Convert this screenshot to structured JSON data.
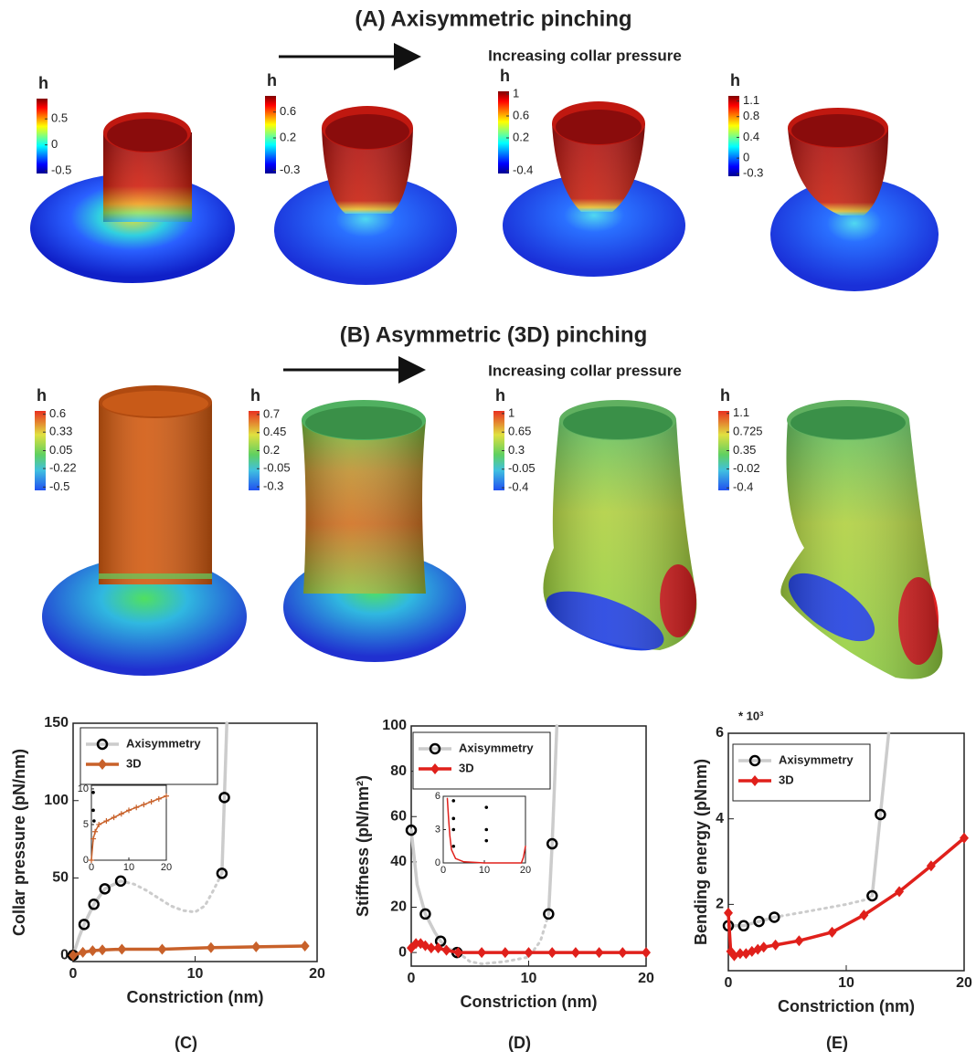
{
  "panel_a": {
    "title": "(A) Axisymmetric pinching",
    "arrow_label": "Increasing collar pressure",
    "colorbars": [
      {
        "label": "h",
        "clim": [
          -0.55,
          0.89
        ],
        "ticks": [
          0.5,
          0,
          -0.5
        ]
      },
      {
        "label": "h",
        "clim": [
          -0.35,
          0.85
        ],
        "ticks": [
          0.6,
          0.2,
          -0.3
        ]
      },
      {
        "label": "h",
        "clim": [
          -0.45,
          1.05
        ],
        "ticks": [
          1,
          0.6,
          0.2,
          -0.4
        ]
      },
      {
        "label": "h",
        "clim": [
          -0.35,
          1.2
        ],
        "ticks": [
          1.1,
          0.8,
          0.4,
          0,
          -0.3
        ]
      }
    ]
  },
  "panel_b": {
    "title": "(B) Asymmetric (3D) pinching",
    "arrow_label": "Increasing collar pressure",
    "colorbars": [
      {
        "label": "h",
        "clim": [
          -0.55,
          0.65
        ],
        "ticks": [
          0.6,
          0.33,
          0.05,
          -0.22,
          -0.5
        ]
      },
      {
        "label": "h",
        "clim": [
          -0.35,
          0.75
        ],
        "ticks": [
          0.7,
          0.45,
          0.2,
          -0.05,
          -0.3
        ]
      },
      {
        "label": "h",
        "clim": [
          -0.45,
          1.05
        ],
        "ticks": [
          1,
          0.65,
          0.3,
          -0.05,
          -0.4
        ]
      },
      {
        "label": "h",
        "clim": [
          -0.45,
          1.15
        ],
        "ticks": [
          1.1,
          0.725,
          0.35,
          -0.02,
          -0.4
        ]
      }
    ]
  },
  "chart_data": [
    {
      "type": "line",
      "caption": "(C)",
      "x_label": "Constriction (nm)",
      "y_label": "Collar pressure (pN/nm)",
      "xlim": [
        0,
        20
      ],
      "ylim": [
        -4,
        150
      ],
      "xticks": [
        0,
        10,
        20
      ],
      "yticks": [
        0,
        50,
        100,
        150
      ],
      "series": [
        {
          "color": "#cccccc",
          "marker": "none",
          "line": "solid",
          "x": [
            0,
            0.5,
            0.9,
            1.7,
            2.6,
            3.9
          ],
          "values": [
            0,
            12,
            20,
            33,
            43,
            48
          ]
        },
        {
          "color": "#cccccc",
          "marker": "none",
          "line": "dotted",
          "x": [
            3.9,
            5,
            6,
            7,
            8,
            9,
            10,
            10.8,
            11.5,
            12.2
          ],
          "values": [
            48,
            46,
            42,
            37,
            32,
            29,
            28,
            32,
            42,
            53
          ]
        },
        {
          "color": "#cccccc",
          "marker": "none",
          "line": "solid",
          "x": [
            12.2,
            12.4,
            12.6
          ],
          "values": [
            53,
            102,
            150
          ]
        },
        {
          "name": "Axisymmetry",
          "color": "#000000",
          "line_color": "#cccccc",
          "marker": "circle",
          "line": "none",
          "x": [
            0,
            0.9,
            1.7,
            2.6,
            3.9,
            12.2,
            12.4
          ],
          "values": [
            0,
            20,
            33,
            43,
            48,
            53,
            102
          ]
        },
        {
          "name": "3D",
          "color": "#c8612a",
          "marker": "diamond",
          "line": "solid",
          "x": [
            0,
            0.8,
            1.6,
            2.4,
            4,
            7.3,
            11.3,
            15,
            19
          ],
          "values": [
            0,
            2,
            3,
            3.5,
            4,
            4,
            5,
            5.5,
            6
          ]
        }
      ],
      "inset": {
        "xlim": [
          0,
          20
        ],
        "ylim": [
          0,
          10.5
        ],
        "xticks": [
          0,
          10,
          20
        ],
        "yticks": [
          0,
          5,
          10
        ],
        "series": [
          {
            "color": "#000000",
            "marker": "dot",
            "line": "none",
            "x": [
              0.5,
              0.5,
              0.7
            ],
            "values": [
              9.5,
              7,
              5.5
            ]
          },
          {
            "color": "#c8612a",
            "marker": "plus",
            "line": "solid",
            "x": [
              0,
              0.5,
              1,
              2,
              4,
              6,
              8,
              10,
              12,
              14,
              16,
              18,
              20
            ],
            "values": [
              0,
              3,
              4,
              5,
              5.5,
              6,
              6.5,
              7,
              7.4,
              7.8,
              8.2,
              8.6,
              9
            ]
          }
        ]
      }
    },
    {
      "type": "line",
      "caption": "(D)",
      "x_label": "Constriction (nm)",
      "y_label": "Stiffness (pN/nm²)",
      "xlim": [
        0,
        20
      ],
      "ylim": [
        -6,
        100
      ],
      "xticks": [
        0,
        10,
        20
      ],
      "yticks": [
        0,
        20,
        40,
        60,
        80,
        100
      ],
      "series": [
        {
          "color": "#cccccc",
          "marker": "none",
          "line": "solid",
          "x": [
            0,
            0.5,
            1.2,
            2,
            2.5,
            3,
            4
          ],
          "values": [
            54,
            30,
            17,
            9,
            5,
            2,
            0
          ]
        },
        {
          "color": "#cccccc",
          "marker": "none",
          "line": "dotted",
          "x": [
            4,
            5,
            6,
            8,
            10,
            11,
            11.7
          ],
          "values": [
            0,
            -4,
            -5,
            -4,
            -2,
            5,
            17
          ]
        },
        {
          "color": "#cccccc",
          "marker": "none",
          "line": "solid",
          "x": [
            11.7,
            12,
            12.4
          ],
          "values": [
            17,
            48,
            100
          ]
        },
        {
          "name": "Axisymmetry",
          "color": "#000000",
          "line_color": "#cccccc",
          "marker": "circle",
          "line": "none",
          "x": [
            0,
            1.2,
            2.5,
            3.9,
            11.7,
            12
          ],
          "values": [
            54,
            17,
            5,
            0,
            17,
            48
          ]
        },
        {
          "name": "3D",
          "color": "#e0201b",
          "marker": "diamond",
          "line": "solid",
          "x": [
            0,
            0.4,
            0.8,
            1.2,
            1.7,
            2.3,
            3,
            4,
            6,
            8,
            10,
            12,
            14,
            16,
            18,
            20
          ],
          "values": [
            2,
            4,
            4,
            3,
            2,
            2,
            1,
            0,
            0,
            0,
            0,
            0,
            0,
            0,
            0,
            0
          ]
        }
      ],
      "inset": {
        "xlim": [
          0,
          20
        ],
        "ylim": [
          0,
          6
        ],
        "xticks": [
          0,
          10,
          20
        ],
        "yticks": [
          0,
          3,
          6
        ],
        "series": [
          {
            "color": "#000000",
            "marker": "dot",
            "line": "none",
            "x": [
              2.5,
              2.5,
              2.5,
              2.5,
              10.5,
              10.5,
              10.5
            ],
            "values": [
              5.6,
              4,
              3,
              1.5,
              5,
              3,
              2
            ]
          },
          {
            "color": "#e0201b",
            "marker": "none",
            "line": "solid",
            "x": [
              1,
              1.3,
              1.6,
              2,
              3,
              5,
              10,
              15,
              19,
              19.5,
              20
            ],
            "values": [
              5.8,
              4,
              2.5,
              1.2,
              0.4,
              0.1,
              0,
              0,
              0,
              0.5,
              1.5
            ]
          }
        ]
      }
    },
    {
      "type": "line",
      "caption": "(E)",
      "x_label": "Constriction (nm)",
      "y_label": "Bending energy (pNnm)",
      "y_multiplier": "* 10³",
      "xlim": [
        0,
        20
      ],
      "ylim": [
        0.45,
        6
      ],
      "xticks": [
        0,
        10,
        20
      ],
      "yticks": [
        2,
        4,
        6
      ],
      "series": [
        {
          "color": "#cccccc",
          "marker": "none",
          "line": "solid",
          "x": [
            0,
            1.3,
            2.6,
            3.9
          ],
          "values": [
            1.5,
            1.5,
            1.6,
            1.7
          ]
        },
        {
          "color": "#cccccc",
          "marker": "none",
          "line": "dotted",
          "x": [
            3.9,
            6,
            8,
            10,
            11.5,
            12.2
          ],
          "values": [
            1.7,
            1.8,
            1.9,
            2.0,
            2.1,
            2.2
          ]
        },
        {
          "color": "#cccccc",
          "marker": "none",
          "line": "solid",
          "x": [
            12.2,
            12.9,
            13.6
          ],
          "values": [
            2.2,
            4.1,
            6
          ]
        },
        {
          "name": "Axisymmetry",
          "color": "#000000",
          "line_color": "#cccccc",
          "marker": "circle",
          "line": "none",
          "x": [
            0,
            1.3,
            2.6,
            3.9,
            12.2,
            12.9
          ],
          "values": [
            1.5,
            1.5,
            1.6,
            1.7,
            2.2,
            4.1
          ]
        },
        {
          "name": "3D",
          "color": "#e0201b",
          "marker": "diamond",
          "line": "solid",
          "x": [
            0,
            0.2,
            0.5,
            1,
            1.5,
            2,
            2.5,
            3,
            4,
            6,
            8.8,
            11.5,
            14.5,
            17.2,
            20
          ],
          "values": [
            1.8,
            0.9,
            0.8,
            0.85,
            0.85,
            0.9,
            0.95,
            1.0,
            1.05,
            1.15,
            1.35,
            1.75,
            2.3,
            2.9,
            3.55
          ]
        }
      ]
    }
  ]
}
